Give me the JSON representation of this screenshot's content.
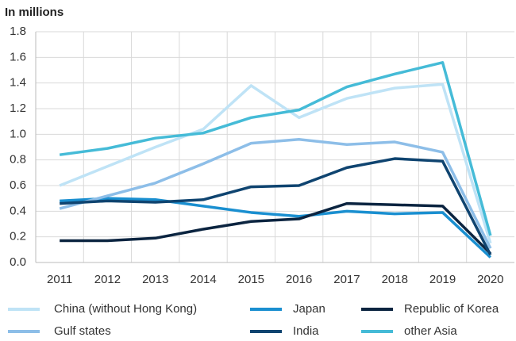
{
  "chart_data": {
    "type": "line",
    "title": "In millions",
    "categories": [
      "2011",
      "2012",
      "2013",
      "2014",
      "2015",
      "2016",
      "2017",
      "2018",
      "2019",
      "2020"
    ],
    "series": [
      {
        "name": "China (without Hong Kong)",
        "color": "#bfe3f6",
        "values": [
          0.6,
          0.75,
          0.9,
          1.04,
          1.38,
          1.13,
          1.28,
          1.36,
          1.39,
          0.15
        ]
      },
      {
        "name": "Japan",
        "color": "#1a8fd0",
        "values": [
          0.48,
          0.5,
          0.49,
          0.44,
          0.39,
          0.36,
          0.4,
          0.38,
          0.39,
          0.04
        ]
      },
      {
        "name": "Republic of Korea",
        "color": "#0b2440",
        "values": [
          0.17,
          0.17,
          0.19,
          0.26,
          0.32,
          0.34,
          0.46,
          0.45,
          0.44,
          0.07
        ]
      },
      {
        "name": "Gulf states",
        "color": "#8dbee8",
        "values": [
          0.42,
          0.52,
          0.62,
          0.77,
          0.93,
          0.96,
          0.92,
          0.94,
          0.86,
          0.11
        ]
      },
      {
        "name": "India",
        "color": "#0f4470",
        "values": [
          0.46,
          0.48,
          0.47,
          0.49,
          0.59,
          0.6,
          0.74,
          0.81,
          0.79,
          0.06
        ]
      },
      {
        "name": "other Asia",
        "color": "#45bbd7",
        "values": [
          0.84,
          0.89,
          0.97,
          1.01,
          1.13,
          1.19,
          1.37,
          1.47,
          1.56,
          0.21
        ]
      }
    ],
    "ylim": [
      0,
      1.8
    ],
    "yticks": [
      {
        "value": 0,
        "label": "0.0"
      },
      0.2,
      0.4,
      0.6,
      0.8,
      {
        "value": 1,
        "label": "1.0"
      },
      1.2,
      1.4,
      1.6,
      1.8
    ],
    "grid": true
  }
}
